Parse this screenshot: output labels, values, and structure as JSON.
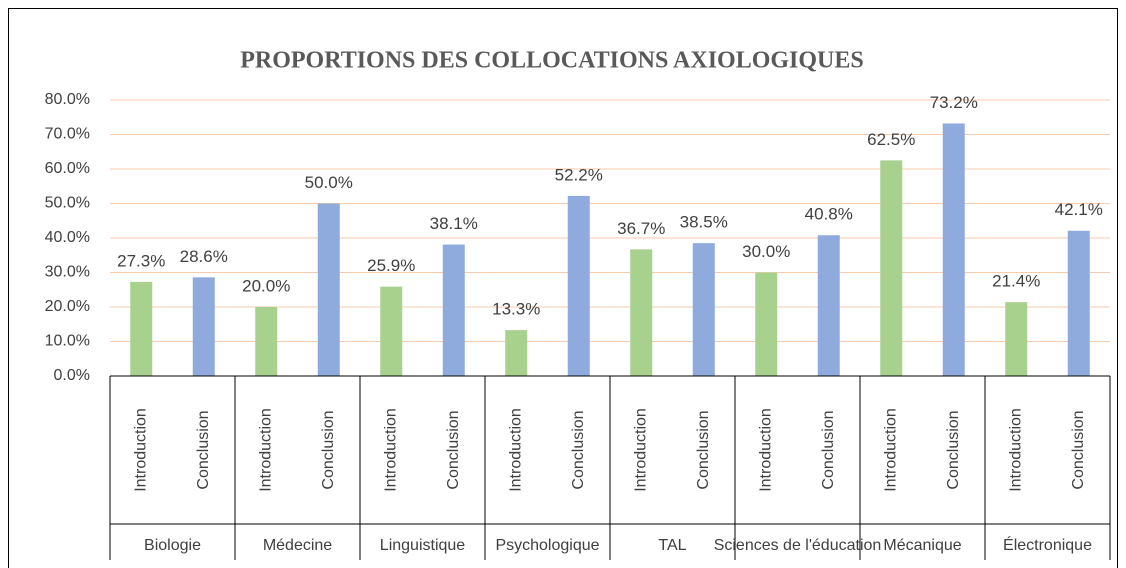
{
  "chart_data": {
    "type": "bar",
    "title": "PROPORTIONS DES COLLOCATIONS AXIOLOGIQUES",
    "categories": [
      "Introduction",
      "Conclusion",
      "Introduction",
      "Conclusion",
      "Introduction",
      "Conclusion",
      "Introduction",
      "Conclusion",
      "Introduction",
      "Conclusion",
      "Introduction",
      "Conclusion",
      "Introduction",
      "Conclusion",
      "Introduction",
      "Conclusion"
    ],
    "groups": [
      "Biologie",
      "Médecine",
      "Linguistique",
      "Psychologique",
      "TAL",
      "Sciences de l'éducation",
      "Mécanique",
      "Électronique"
    ],
    "values": [
      27.3,
      28.6,
      20.0,
      50.0,
      25.9,
      38.1,
      13.3,
      52.2,
      36.7,
      38.5,
      30.0,
      40.8,
      62.5,
      73.2,
      21.4,
      42.1
    ],
    "value_labels": [
      "27.3%",
      "28.6%",
      "20.0%",
      "50.0%",
      "25.9%",
      "38.1%",
      "13.3%",
      "52.2%",
      "36.7%",
      "38.5%",
      "30.0%",
      "40.8%",
      "62.5%",
      "73.2%",
      "21.4%",
      "42.1%"
    ],
    "colors": [
      "#a9d18e",
      "#8faadc",
      "#a9d18e",
      "#8faadc",
      "#a9d18e",
      "#8faadc",
      "#a9d18e",
      "#8faadc",
      "#a9d18e",
      "#8faadc",
      "#a9d18e",
      "#8faadc",
      "#a9d18e",
      "#8faadc",
      "#a9d18e",
      "#8faadc"
    ],
    "ylim": [
      0,
      80
    ],
    "yticks": [
      {
        "value": 0,
        "label": "0.0%"
      },
      {
        "value": 10,
        "label": "10.0%"
      },
      {
        "value": 20,
        "label": "20.0%"
      },
      {
        "value": 30,
        "label": "30.0%"
      },
      {
        "value": 40,
        "label": "40.0%"
      },
      {
        "value": 50,
        "label": "50.0%"
      },
      {
        "value": 60,
        "label": "60.0%"
      },
      {
        "value": 70,
        "label": "70.0%"
      },
      {
        "value": 80,
        "label": "80.0%"
      }
    ],
    "grid": true
  }
}
